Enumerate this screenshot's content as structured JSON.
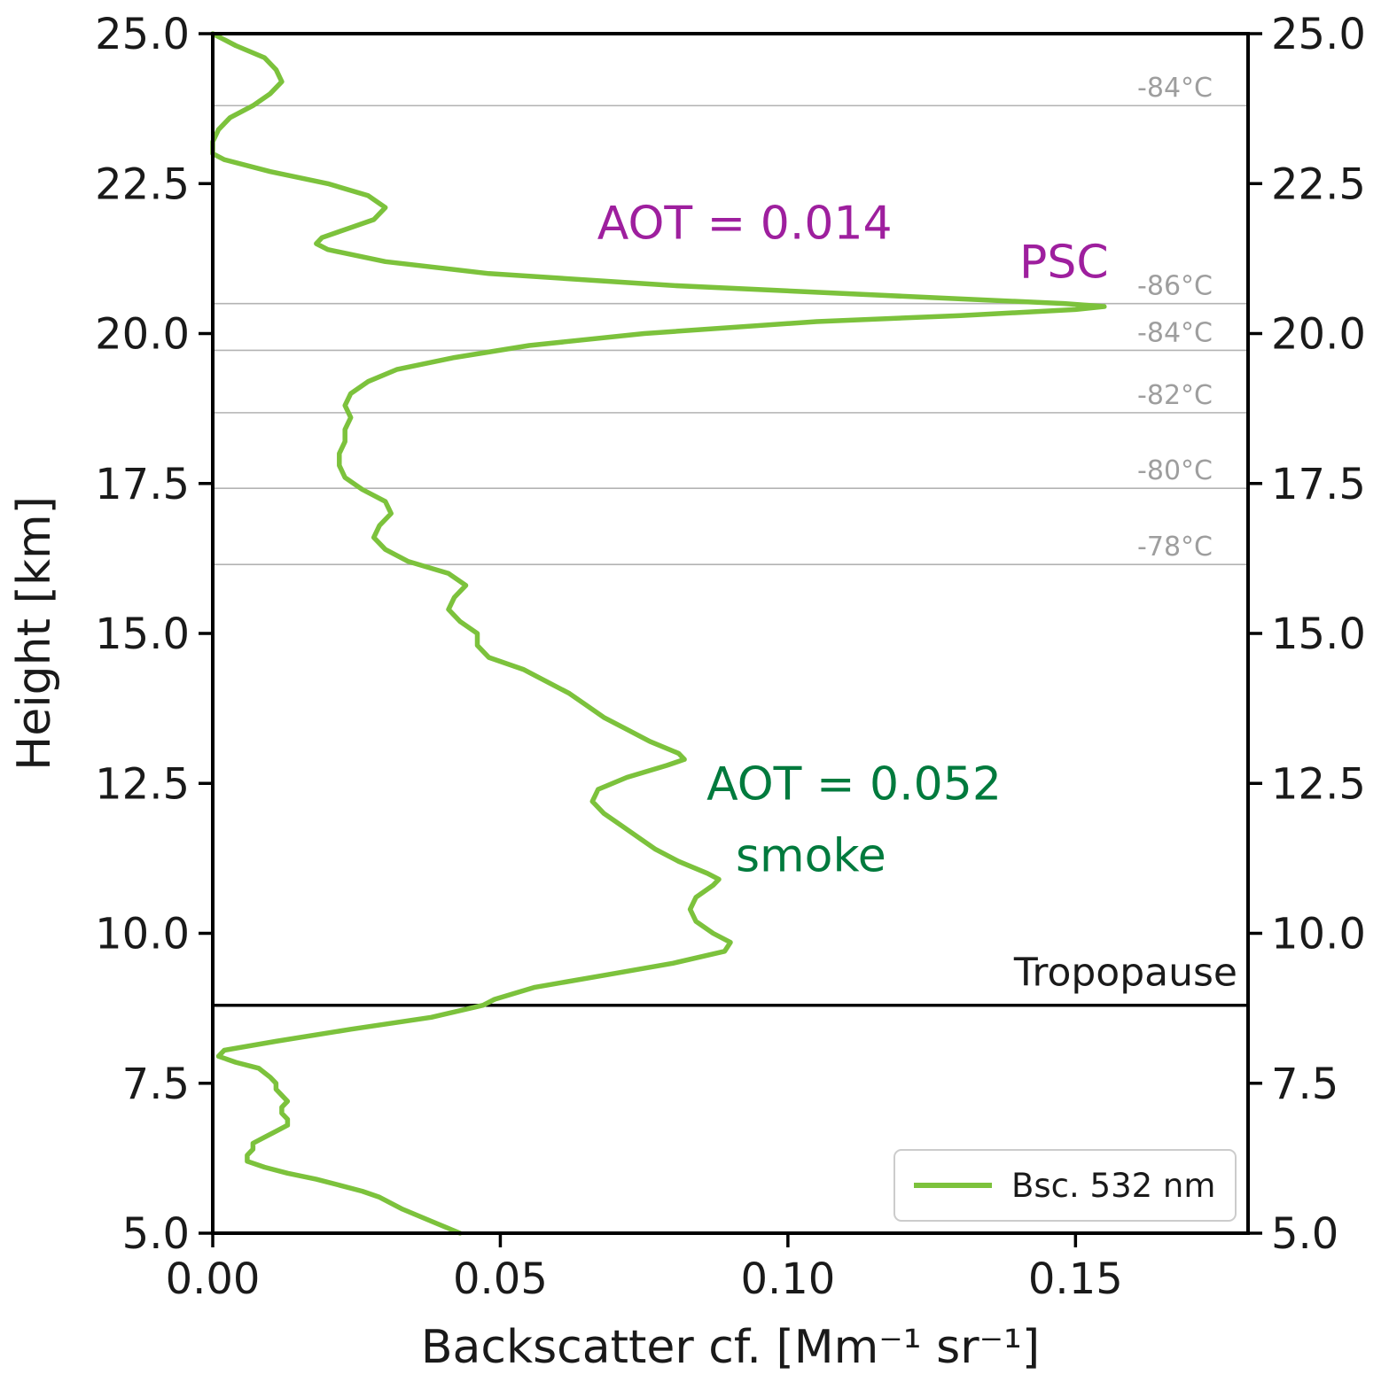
{
  "chart_data": {
    "type": "line",
    "title": "",
    "xlabel": "Backscatter cf. [Mm⁻¹ sr⁻¹]",
    "ylabel": "Height [km]",
    "xlim": [
      0,
      0.18
    ],
    "ylim": [
      5.0,
      25.0
    ],
    "xticks": [
      0.0,
      0.05,
      0.1,
      0.15
    ],
    "xtick_labels": [
      "0.00",
      "0.05",
      "0.10",
      "0.15"
    ],
    "yticks": [
      5.0,
      7.5,
      10.0,
      12.5,
      15.0,
      17.5,
      20.0,
      22.5,
      25.0
    ],
    "ytick_labels": [
      "5.0",
      "7.5",
      "10.0",
      "12.5",
      "15.0",
      "17.5",
      "20.0",
      "22.5",
      "25.0"
    ],
    "grid": false,
    "series": [
      {
        "name": "Bsc. 532 nm",
        "color": "#7cc23c",
        "points_format": "[height_km, backscatter]",
        "points": [
          [
            25.0,
            0.0
          ],
          [
            24.8,
            0.004
          ],
          [
            24.6,
            0.009
          ],
          [
            24.4,
            0.011
          ],
          [
            24.2,
            0.012
          ],
          [
            24.0,
            0.01
          ],
          [
            23.8,
            0.007
          ],
          [
            23.6,
            0.003
          ],
          [
            23.4,
            0.001
          ],
          [
            23.2,
            0.0
          ],
          [
            23.0,
            0.0
          ],
          [
            22.9,
            0.002
          ],
          [
            22.7,
            0.01
          ],
          [
            22.5,
            0.02
          ],
          [
            22.3,
            0.027
          ],
          [
            22.1,
            0.03
          ],
          [
            21.9,
            0.028
          ],
          [
            21.7,
            0.022
          ],
          [
            21.6,
            0.019
          ],
          [
            21.5,
            0.018
          ],
          [
            21.4,
            0.02
          ],
          [
            21.2,
            0.03
          ],
          [
            21.0,
            0.048
          ],
          [
            20.8,
            0.08
          ],
          [
            20.6,
            0.125
          ],
          [
            20.5,
            0.148
          ],
          [
            20.45,
            0.155
          ],
          [
            20.4,
            0.15
          ],
          [
            20.3,
            0.13
          ],
          [
            20.2,
            0.105
          ],
          [
            20.0,
            0.075
          ],
          [
            19.8,
            0.055
          ],
          [
            19.6,
            0.042
          ],
          [
            19.4,
            0.032
          ],
          [
            19.2,
            0.027
          ],
          [
            19.0,
            0.024
          ],
          [
            18.8,
            0.023
          ],
          [
            18.6,
            0.024
          ],
          [
            18.4,
            0.023
          ],
          [
            18.2,
            0.023
          ],
          [
            18.0,
            0.022
          ],
          [
            17.8,
            0.022
          ],
          [
            17.6,
            0.023
          ],
          [
            17.4,
            0.026
          ],
          [
            17.2,
            0.03
          ],
          [
            17.0,
            0.031
          ],
          [
            16.8,
            0.029
          ],
          [
            16.6,
            0.028
          ],
          [
            16.4,
            0.03
          ],
          [
            16.2,
            0.034
          ],
          [
            16.0,
            0.041
          ],
          [
            15.8,
            0.044
          ],
          [
            15.6,
            0.042
          ],
          [
            15.4,
            0.041
          ],
          [
            15.2,
            0.043
          ],
          [
            15.0,
            0.046
          ],
          [
            14.8,
            0.046
          ],
          [
            14.6,
            0.048
          ],
          [
            14.4,
            0.054
          ],
          [
            14.2,
            0.058
          ],
          [
            14.0,
            0.062
          ],
          [
            13.8,
            0.065
          ],
          [
            13.6,
            0.068
          ],
          [
            13.4,
            0.072
          ],
          [
            13.2,
            0.076
          ],
          [
            13.0,
            0.081
          ],
          [
            12.9,
            0.082
          ],
          [
            12.8,
            0.079
          ],
          [
            12.6,
            0.072
          ],
          [
            12.4,
            0.067
          ],
          [
            12.2,
            0.066
          ],
          [
            12.0,
            0.068
          ],
          [
            11.8,
            0.071
          ],
          [
            11.6,
            0.074
          ],
          [
            11.4,
            0.077
          ],
          [
            11.2,
            0.081
          ],
          [
            11.0,
            0.086
          ],
          [
            10.9,
            0.088
          ],
          [
            10.8,
            0.087
          ],
          [
            10.6,
            0.084
          ],
          [
            10.4,
            0.083
          ],
          [
            10.2,
            0.084
          ],
          [
            10.0,
            0.087
          ],
          [
            9.85,
            0.09
          ],
          [
            9.7,
            0.089
          ],
          [
            9.5,
            0.08
          ],
          [
            9.3,
            0.068
          ],
          [
            9.1,
            0.056
          ],
          [
            8.9,
            0.049
          ],
          [
            8.8,
            0.047
          ],
          [
            8.6,
            0.038
          ],
          [
            8.4,
            0.024
          ],
          [
            8.2,
            0.011
          ],
          [
            8.05,
            0.002
          ],
          [
            7.95,
            0.001
          ],
          [
            7.85,
            0.004
          ],
          [
            7.75,
            0.008
          ],
          [
            7.6,
            0.01
          ],
          [
            7.5,
            0.011
          ],
          [
            7.4,
            0.011
          ],
          [
            7.3,
            0.012
          ],
          [
            7.2,
            0.013
          ],
          [
            7.1,
            0.012
          ],
          [
            7.0,
            0.012
          ],
          [
            6.9,
            0.013
          ],
          [
            6.8,
            0.013
          ],
          [
            6.7,
            0.011
          ],
          [
            6.6,
            0.009
          ],
          [
            6.5,
            0.007
          ],
          [
            6.4,
            0.007
          ],
          [
            6.3,
            0.006
          ],
          [
            6.2,
            0.006
          ],
          [
            6.1,
            0.009
          ],
          [
            6.0,
            0.013
          ],
          [
            5.9,
            0.018
          ],
          [
            5.8,
            0.022
          ],
          [
            5.7,
            0.026
          ],
          [
            5.6,
            0.029
          ],
          [
            5.4,
            0.033
          ],
          [
            5.2,
            0.038
          ],
          [
            5.0,
            0.043
          ]
        ]
      }
    ],
    "tropopause": {
      "height_km": 8.8,
      "label": "Tropopause",
      "color": "#000000"
    },
    "isotherms": [
      {
        "height_km": 23.8,
        "label": "-84°C"
      },
      {
        "height_km": 20.5,
        "label": "-86°C"
      },
      {
        "height_km": 19.72,
        "label": "-84°C"
      },
      {
        "height_km": 18.68,
        "label": "-82°C"
      },
      {
        "height_km": 17.42,
        "label": "-80°C"
      },
      {
        "height_km": 16.15,
        "label": "-78°C"
      }
    ],
    "isotherm_line_color": "#b3b3b3",
    "isotherm_label_color": "#9e9e9e",
    "annotations": [
      {
        "text": "AOT = 0.014",
        "x": 0.0925,
        "y": 21.85,
        "color": "#9e1f9e",
        "anchor": "middle",
        "size": 52
      },
      {
        "text": "PSC",
        "x": 0.148,
        "y": 21.2,
        "color": "#9e1f9e",
        "anchor": "middle",
        "size": 52
      },
      {
        "text": "AOT = 0.052",
        "x": 0.1115,
        "y": 12.5,
        "color": "#007a3d",
        "anchor": "middle",
        "size": 52
      },
      {
        "text": "smoke",
        "x": 0.104,
        "y": 11.3,
        "color": "#007a3d",
        "anchor": "middle",
        "size": 52
      }
    ],
    "legend": {
      "position": "lower right",
      "entries": [
        {
          "label": "Bsc. 532 nm",
          "color": "#7cc23c"
        }
      ]
    }
  }
}
